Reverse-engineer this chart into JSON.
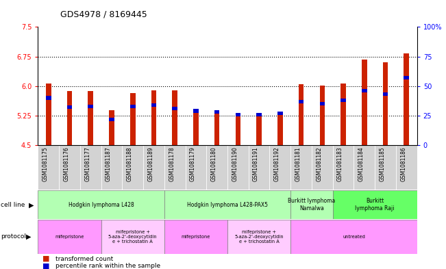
{
  "title": "GDS4978 / 8169445",
  "samples": [
    "GSM1081175",
    "GSM1081176",
    "GSM1081177",
    "GSM1081187",
    "GSM1081188",
    "GSM1081189",
    "GSM1081178",
    "GSM1081179",
    "GSM1081180",
    "GSM1081190",
    "GSM1081191",
    "GSM1081192",
    "GSM1081181",
    "GSM1081182",
    "GSM1081183",
    "GSM1081184",
    "GSM1081185",
    "GSM1081186"
  ],
  "red_values": [
    6.06,
    5.87,
    5.87,
    5.38,
    5.82,
    5.9,
    5.9,
    5.38,
    5.38,
    5.23,
    5.24,
    5.3,
    6.04,
    6.01,
    6.07,
    6.67,
    6.61,
    6.83
  ],
  "blue_percentile": [
    40,
    32,
    33,
    22,
    33,
    34,
    31,
    29,
    28,
    26,
    26,
    27,
    37,
    35,
    38,
    46,
    43,
    57
  ],
  "y_min": 4.5,
  "y_max": 7.5,
  "y_ticks_left": [
    4.5,
    5.25,
    6.0,
    6.75,
    7.5
  ],
  "y_ticks_right": [
    0,
    25,
    50,
    75,
    100
  ],
  "cell_line_groups": [
    {
      "label": "Hodgkin lymphoma L428",
      "start": 0,
      "end": 5,
      "color": "#b3ffb3"
    },
    {
      "label": "Hodgkin lymphoma L428-PAX5",
      "start": 6,
      "end": 11,
      "color": "#b3ffb3"
    },
    {
      "label": "Burkitt lymphoma\nNamalwa",
      "start": 12,
      "end": 13,
      "color": "#b3ffb3"
    },
    {
      "label": "Burkitt\nlymphoma Raji",
      "start": 14,
      "end": 17,
      "color": "#66ff66"
    }
  ],
  "protocol_groups": [
    {
      "label": "mifepristone",
      "start": 0,
      "end": 2,
      "color": "#ff99ff"
    },
    {
      "label": "mifepristone +\n5-aza-2'-deoxycytidin\ne + trichostatin A",
      "start": 3,
      "end": 5,
      "color": "#ffccff"
    },
    {
      "label": "mifepristone",
      "start": 6,
      "end": 8,
      "color": "#ff99ff"
    },
    {
      "label": "mifepristone +\n5-aza-2'-deoxycytidin\ne + trichostatin A",
      "start": 9,
      "end": 11,
      "color": "#ffccff"
    },
    {
      "label": "untreated",
      "start": 12,
      "end": 17,
      "color": "#ff99ff"
    }
  ],
  "bar_color_red": "#cc2200",
  "bar_color_blue": "#0000cc",
  "background_color": "#ffffff",
  "bar_width": 0.25,
  "sample_bg_color": "#d3d3d3"
}
